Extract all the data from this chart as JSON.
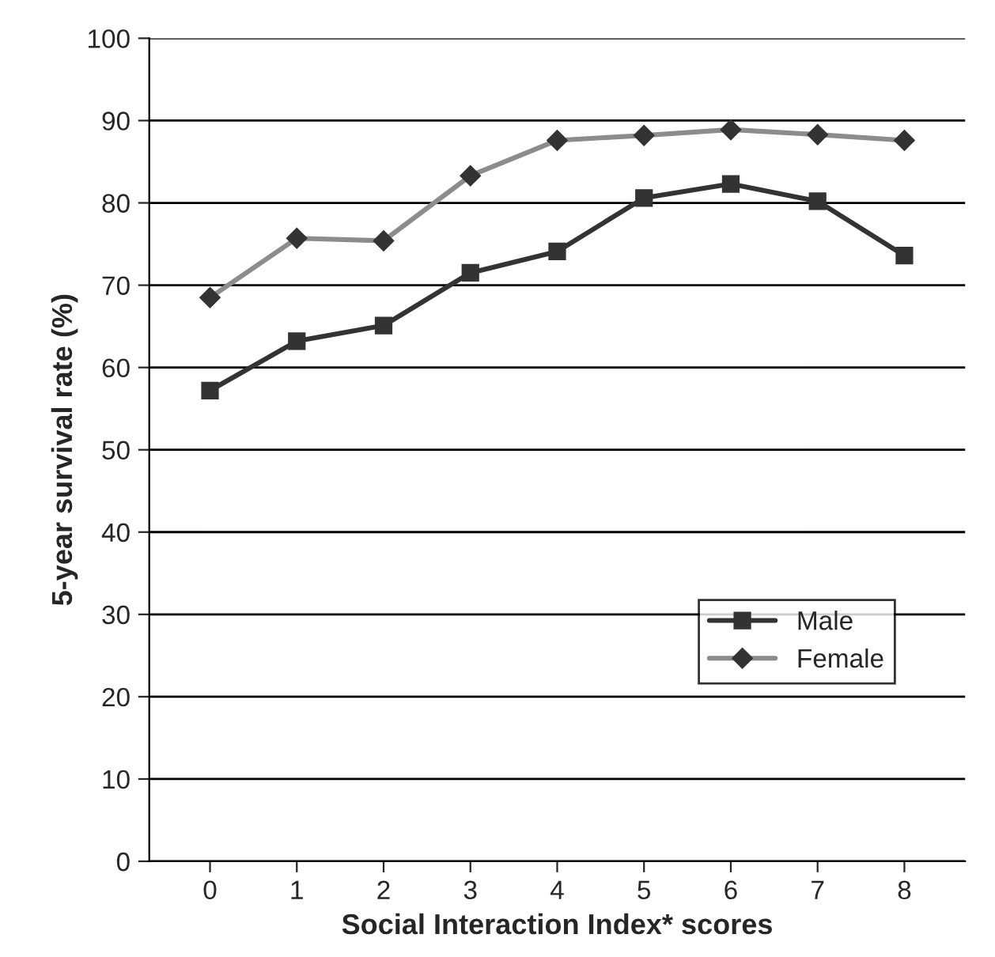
{
  "chart_data": {
    "type": "line",
    "xlabel": "Social Interaction Index* scores",
    "ylabel": "5-year survival rate (%)",
    "categories": [
      "0",
      "1",
      "2",
      "3",
      "4",
      "5",
      "6",
      "7",
      "8"
    ],
    "series": [
      {
        "name": "Male",
        "color": "#333333",
        "marker": "square",
        "values": [
          57.2,
          63.2,
          65.1,
          71.5,
          74.1,
          80.6,
          82.3,
          80.2,
          73.6
        ]
      },
      {
        "name": "Female",
        "color": "#8c8c8c",
        "marker": "diamond",
        "values": [
          68.5,
          75.7,
          75.4,
          83.3,
          87.6,
          88.2,
          88.9,
          88.3,
          87.6
        ]
      }
    ],
    "ylim": [
      0,
      100
    ],
    "yticks": [
      0,
      10,
      20,
      30,
      40,
      50,
      60,
      70,
      80,
      90,
      100
    ],
    "grid": "y",
    "legend": "lower right"
  }
}
